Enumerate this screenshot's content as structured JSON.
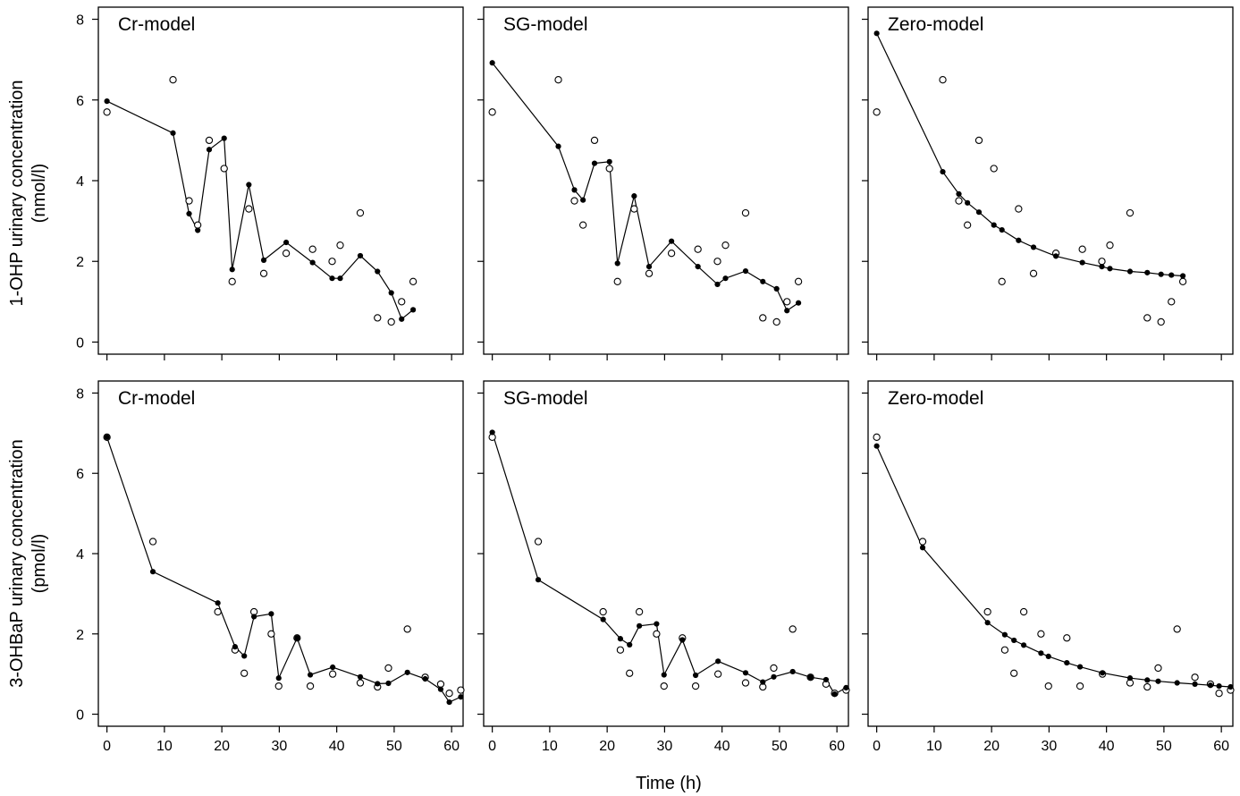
{
  "figure": {
    "xlabel": "Time (h)",
    "rows": [
      {
        "ylabel_line1": "1-OHP urinary concentration",
        "ylabel_line2": "(nmol/l)"
      },
      {
        "ylabel_line1": "3-OHBaP urinary concentration",
        "ylabel_line2": "(pmol/l)"
      }
    ],
    "colors": {
      "line": "#000000",
      "predicted_fill": "#000000",
      "observed_stroke": "#000000",
      "background": "#ffffff"
    }
  },
  "chart_data": [
    {
      "type": "scatter",
      "title": "Cr-model",
      "ylabel": "1-OHP urinary concentration (nmol/l)",
      "xlabel": "Time (h)",
      "xlim": [
        -1.5,
        62
      ],
      "ylim": [
        -0.3,
        8.3
      ],
      "yticks": [
        0,
        2,
        4,
        6,
        8
      ],
      "xticks": [
        0,
        10,
        20,
        30,
        40,
        50,
        60
      ],
      "series": [
        {
          "role": "observed",
          "marker": "open-circle",
          "x": [
            0,
            11.5,
            14.3,
            15.8,
            17.8,
            20.4,
            21.8,
            24.7,
            27.3,
            31.2,
            35.8,
            39.2,
            40.6,
            44.1,
            47.1,
            49.5,
            51.3,
            53.3
          ],
          "y": [
            5.7,
            6.5,
            3.5,
            2.9,
            5.0,
            4.3,
            1.5,
            3.3,
            1.7,
            2.2,
            2.3,
            2.0,
            2.4,
            3.2,
            0.6,
            0.5,
            1.0,
            1.5
          ]
        },
        {
          "role": "predicted",
          "marker": "filled-circle",
          "connected": true,
          "x": [
            0,
            11.5,
            14.3,
            15.8,
            17.8,
            20.4,
            21.8,
            24.7,
            27.3,
            31.2,
            35.8,
            39.2,
            40.6,
            44.1,
            47.1,
            49.5,
            51.3,
            53.3
          ],
          "y": [
            5.97,
            5.18,
            3.18,
            2.77,
            4.77,
            5.05,
            1.8,
            3.9,
            2.03,
            2.47,
            1.97,
            1.58,
            1.58,
            2.14,
            1.75,
            1.22,
            0.57,
            0.8
          ]
        }
      ]
    },
    {
      "type": "scatter",
      "title": "SG-model",
      "ylabel": "1-OHP urinary concentration (nmol/l)",
      "xlabel": "Time (h)",
      "xlim": [
        -1.5,
        62
      ],
      "ylim": [
        -0.3,
        8.3
      ],
      "yticks": [
        0,
        2,
        4,
        6,
        8
      ],
      "xticks": [
        0,
        10,
        20,
        30,
        40,
        50,
        60
      ],
      "series": [
        {
          "role": "observed",
          "marker": "open-circle",
          "x": [
            0,
            11.5,
            14.3,
            15.8,
            17.8,
            20.4,
            21.8,
            24.7,
            27.3,
            31.2,
            35.8,
            39.2,
            40.6,
            44.1,
            47.1,
            49.5,
            51.3,
            53.3
          ],
          "y": [
            5.7,
            6.5,
            3.5,
            2.9,
            5.0,
            4.3,
            1.5,
            3.3,
            1.7,
            2.2,
            2.3,
            2.0,
            2.4,
            3.2,
            0.6,
            0.5,
            1.0,
            1.5
          ]
        },
        {
          "role": "predicted",
          "marker": "filled-circle",
          "connected": true,
          "x": [
            0,
            11.5,
            14.3,
            15.8,
            17.8,
            20.4,
            21.8,
            24.7,
            27.3,
            31.2,
            35.8,
            39.2,
            40.6,
            44.1,
            47.1,
            49.5,
            51.3,
            53.3
          ],
          "y": [
            6.92,
            4.85,
            3.77,
            3.52,
            4.43,
            4.47,
            1.95,
            3.62,
            1.87,
            2.5,
            1.87,
            1.43,
            1.58,
            1.76,
            1.5,
            1.32,
            0.78,
            0.97
          ]
        }
      ]
    },
    {
      "type": "scatter",
      "title": "Zero-model",
      "ylabel": "1-OHP urinary concentration (nmol/l)",
      "xlabel": "Time (h)",
      "xlim": [
        -1.5,
        62
      ],
      "ylim": [
        -0.3,
        8.3
      ],
      "yticks": [
        0,
        2,
        4,
        6,
        8
      ],
      "xticks": [
        0,
        10,
        20,
        30,
        40,
        50,
        60
      ],
      "series": [
        {
          "role": "observed",
          "marker": "open-circle",
          "x": [
            0,
            11.5,
            14.3,
            15.8,
            17.8,
            20.4,
            21.8,
            24.7,
            27.3,
            31.2,
            35.8,
            39.2,
            40.6,
            44.1,
            47.1,
            49.5,
            51.3,
            53.3
          ],
          "y": [
            5.7,
            6.5,
            3.5,
            2.9,
            5.0,
            4.3,
            1.5,
            3.3,
            1.7,
            2.2,
            2.3,
            2.0,
            2.4,
            3.2,
            0.6,
            0.5,
            1.0,
            1.5
          ]
        },
        {
          "role": "predicted",
          "marker": "filled-circle",
          "connected": true,
          "x": [
            0,
            11.5,
            14.3,
            15.8,
            17.8,
            20.4,
            21.8,
            24.7,
            27.3,
            31.2,
            35.8,
            39.2,
            40.6,
            44.1,
            47.1,
            49.5,
            51.3,
            53.3
          ],
          "y": [
            7.65,
            4.22,
            3.67,
            3.45,
            3.22,
            2.9,
            2.78,
            2.52,
            2.35,
            2.13,
            1.97,
            1.87,
            1.82,
            1.75,
            1.72,
            1.68,
            1.66,
            1.64
          ]
        }
      ]
    },
    {
      "type": "scatter",
      "title": "Cr-model",
      "ylabel": "3-OHBaP urinary concentration (pmol/l)",
      "xlabel": "Time (h)",
      "xlim": [
        -1.5,
        62
      ],
      "ylim": [
        -0.3,
        8.3
      ],
      "yticks": [
        0,
        2,
        4,
        6,
        8
      ],
      "xticks": [
        0,
        10,
        20,
        30,
        40,
        50,
        60
      ],
      "series": [
        {
          "role": "observed",
          "marker": "open-circle",
          "x": [
            0,
            8,
            19.3,
            22.3,
            23.9,
            25.6,
            28.6,
            29.9,
            33.1,
            35.4,
            39.3,
            44.1,
            47.1,
            49,
            52.3,
            55.4,
            58.1,
            59.6,
            61.6
          ],
          "y": [
            6.9,
            4.3,
            2.55,
            1.6,
            1.02,
            2.55,
            2.0,
            0.7,
            1.9,
            0.7,
            1.0,
            0.78,
            0.68,
            1.15,
            2.12,
            0.92,
            0.75,
            0.52,
            0.6
          ]
        },
        {
          "role": "predicted",
          "marker": "filled-circle",
          "connected": true,
          "x": [
            0,
            8,
            19.3,
            22.3,
            23.9,
            25.6,
            28.6,
            29.9,
            33.1,
            35.4,
            39.3,
            44.1,
            47.1,
            49,
            52.3,
            55.4,
            58.1,
            59.6,
            61.6
          ],
          "y": [
            6.9,
            3.55,
            2.77,
            1.68,
            1.45,
            2.43,
            2.5,
            0.9,
            1.9,
            0.98,
            1.17,
            0.93,
            0.76,
            0.77,
            1.04,
            0.88,
            0.62,
            0.3,
            0.43
          ]
        }
      ]
    },
    {
      "type": "scatter",
      "title": "SG-model",
      "ylabel": "3-OHBaP urinary concentration (pmol/l)",
      "xlabel": "Time (h)",
      "xlim": [
        -1.5,
        62
      ],
      "ylim": [
        -0.3,
        8.3
      ],
      "yticks": [
        0,
        2,
        4,
        6,
        8
      ],
      "xticks": [
        0,
        10,
        20,
        30,
        40,
        50,
        60
      ],
      "series": [
        {
          "role": "observed",
          "marker": "open-circle",
          "x": [
            0,
            8,
            19.3,
            22.3,
            23.9,
            25.6,
            28.6,
            29.9,
            33.1,
            35.4,
            39.3,
            44.1,
            47.1,
            49,
            52.3,
            55.4,
            58.1,
            59.6,
            61.6
          ],
          "y": [
            6.9,
            4.3,
            2.55,
            1.6,
            1.02,
            2.55,
            2.0,
            0.7,
            1.9,
            0.7,
            1.0,
            0.78,
            0.68,
            1.15,
            2.12,
            0.92,
            0.75,
            0.52,
            0.6
          ]
        },
        {
          "role": "predicted",
          "marker": "filled-circle",
          "connected": true,
          "x": [
            0,
            8,
            19.3,
            22.3,
            23.9,
            25.6,
            28.6,
            29.9,
            33.1,
            35.4,
            39.3,
            44.1,
            47.1,
            49,
            52.3,
            55.4,
            58.1,
            59.6,
            61.6
          ],
          "y": [
            7.02,
            3.35,
            2.36,
            1.88,
            1.73,
            2.2,
            2.25,
            0.98,
            1.85,
            0.97,
            1.32,
            1.03,
            0.8,
            0.93,
            1.06,
            0.92,
            0.86,
            0.5,
            0.66
          ]
        }
      ]
    },
    {
      "type": "scatter",
      "title": "Zero-model",
      "ylabel": "3-OHBaP urinary concentration (pmol/l)",
      "xlabel": "Time (h)",
      "xlim": [
        -1.5,
        62
      ],
      "ylim": [
        -0.3,
        8.3
      ],
      "yticks": [
        0,
        2,
        4,
        6,
        8
      ],
      "xticks": [
        0,
        10,
        20,
        30,
        40,
        50,
        60
      ],
      "series": [
        {
          "role": "observed",
          "marker": "open-circle",
          "x": [
            0,
            8,
            19.3,
            22.3,
            23.9,
            25.6,
            28.6,
            29.9,
            33.1,
            35.4,
            39.3,
            44.1,
            47.1,
            49,
            52.3,
            55.4,
            58.1,
            59.6,
            61.6
          ],
          "y": [
            6.9,
            4.3,
            2.55,
            1.6,
            1.02,
            2.55,
            2.0,
            0.7,
            1.9,
            0.7,
            1.0,
            0.78,
            0.68,
            1.15,
            2.12,
            0.92,
            0.75,
            0.52,
            0.6
          ]
        },
        {
          "role": "predicted",
          "marker": "filled-circle",
          "connected": true,
          "x": [
            0,
            8,
            19.3,
            22.3,
            23.9,
            25.6,
            28.6,
            29.9,
            33.1,
            35.4,
            39.3,
            44.1,
            47.1,
            49,
            52.3,
            55.4,
            58.1,
            59.6,
            61.6
          ],
          "y": [
            6.68,
            4.15,
            2.28,
            1.98,
            1.84,
            1.72,
            1.52,
            1.44,
            1.28,
            1.18,
            1.03,
            0.9,
            0.85,
            0.82,
            0.78,
            0.75,
            0.72,
            0.7,
            0.68
          ]
        }
      ]
    }
  ]
}
